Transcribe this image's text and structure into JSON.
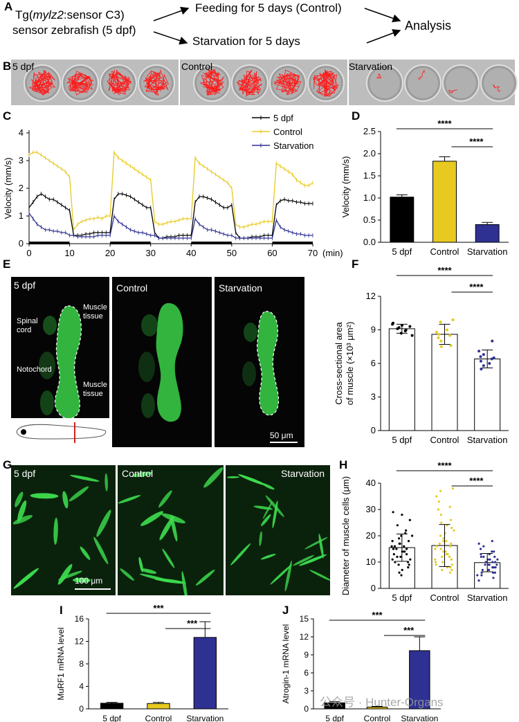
{
  "panel_letters": {
    "a": "A",
    "b": "B",
    "c": "C",
    "d": "D",
    "e": "E",
    "f": "F",
    "g": "G",
    "h": "H",
    "i": "I",
    "j": "J"
  },
  "schematic": {
    "fish_line1_pre": "Tg(",
    "fish_line1_italic": "mylz2",
    "fish_line1_post": ":sensor C3)",
    "fish_line2": "sensor zebrafish (5 dpf)",
    "feeding": "Feeding for 5 days (Control)",
    "starvation": "Starvation for 5 days",
    "analysis": "Analysis"
  },
  "tracks": {
    "labels": [
      "5 dpf",
      "Control",
      "Starvation"
    ]
  },
  "muscle_images": {
    "labels": [
      "5 dpf",
      "Control",
      "Starvation"
    ],
    "annotations": [
      "Spinal",
      "cord",
      "Notochord",
      "Muscle",
      "tissue",
      "Muscle",
      "tissue"
    ],
    "scale_bar": "50 μm"
  },
  "cell_images": {
    "labels": [
      "5 dpf",
      "Control",
      "Starvation"
    ],
    "scale_bar": "100 μm"
  },
  "watermark": "公众号 · Hunter-Organs",
  "colors": {
    "dpf": "#000000",
    "control": "#e8c91f",
    "starvation": "#2e3192",
    "green": "#3ddc4e"
  },
  "chart_data": [
    {
      "id": "C",
      "type": "line",
      "ylabel": "Velocity (mm/s)",
      "xlabel": "(min)",
      "xlim": [
        0,
        70
      ],
      "ylim": [
        0,
        4
      ],
      "xticks": [
        "0",
        "10",
        "20",
        "30",
        "40",
        "50",
        "60",
        "70"
      ],
      "yticks": [
        "0",
        "1",
        "2",
        "3",
        "4"
      ],
      "dark_periods": [
        [
          0,
          10
        ],
        [
          20,
          30
        ],
        [
          40,
          50
        ],
        [
          60,
          70
        ]
      ],
      "legend": [
        "5 dpf",
        "Control",
        "Starvation"
      ],
      "series": [
        {
          "name": "5 dpf",
          "color": "#000000",
          "values": [
            1.3,
            1.5,
            1.7,
            1.8,
            1.7,
            1.6,
            1.6,
            1.5,
            1.4,
            1.3,
            1.2,
            0.3,
            0.3,
            0.3,
            0.35,
            0.35,
            0.4,
            0.4,
            0.4,
            0.4,
            0.4,
            1.6,
            1.8,
            1.8,
            1.75,
            1.7,
            1.6,
            1.5,
            1.4,
            1.3,
            1.3,
            0.4,
            0.2,
            0.2,
            0.25,
            0.25,
            0.25,
            0.3,
            0.3,
            0.3,
            0.3,
            1.5,
            1.7,
            1.7,
            1.65,
            1.6,
            1.5,
            1.4,
            1.3,
            1.3,
            1.4,
            0.4,
            0.2,
            0.2,
            0.2,
            0.25,
            0.25,
            0.25,
            0.3,
            0.3,
            0.3,
            1.4,
            1.55,
            1.6,
            1.55,
            1.55,
            1.5,
            1.5,
            1.45,
            1.45,
            1.45
          ]
        },
        {
          "name": "Control",
          "color": "#e8c91f",
          "values": [
            3.2,
            3.3,
            3.3,
            3.2,
            3.1,
            3.0,
            2.9,
            2.8,
            2.7,
            2.6,
            2.4,
            0.5,
            0.7,
            0.8,
            0.85,
            0.9,
            0.9,
            0.95,
            0.9,
            1.0,
            1.0,
            3.3,
            3.1,
            3.0,
            2.9,
            2.8,
            2.7,
            2.6,
            2.5,
            2.4,
            2.3,
            0.8,
            0.7,
            0.7,
            0.75,
            0.8,
            0.8,
            0.85,
            0.9,
            0.9,
            0.9,
            3.1,
            2.9,
            2.8,
            2.7,
            2.6,
            2.5,
            2.4,
            2.3,
            2.2,
            2.0,
            0.7,
            0.6,
            0.6,
            0.65,
            0.7,
            0.7,
            0.75,
            0.8,
            0.8,
            0.8,
            2.9,
            2.8,
            2.7,
            2.6,
            2.5,
            2.3,
            2.2,
            2.1,
            2.1,
            2.2
          ]
        },
        {
          "name": "Starvation",
          "color": "#2e3192",
          "values": [
            1.1,
            0.9,
            0.7,
            0.6,
            0.5,
            0.5,
            0.45,
            0.45,
            0.4,
            0.4,
            0.3,
            0.3,
            0.25,
            0.25,
            0.25,
            0.25,
            0.25,
            0.3,
            0.3,
            0.3,
            0.3,
            1.0,
            0.8,
            0.7,
            0.6,
            0.5,
            0.45,
            0.4,
            0.4,
            0.35,
            0.3,
            0.3,
            0.2,
            0.2,
            0.2,
            0.2,
            0.2,
            0.2,
            0.2,
            0.2,
            0.2,
            0.9,
            0.7,
            0.6,
            0.5,
            0.5,
            0.45,
            0.4,
            0.35,
            0.3,
            0.3,
            0.2,
            0.2,
            0.2,
            0.2,
            0.2,
            0.2,
            0.2,
            0.2,
            0.2,
            0.2,
            0.85,
            0.6,
            0.5,
            0.45,
            0.4,
            0.35,
            0.35,
            0.3,
            0.3,
            0.3
          ]
        }
      ]
    },
    {
      "id": "D",
      "type": "bar",
      "ylabel": "Velocity (mm/s)",
      "ylim": [
        0,
        2.5
      ],
      "yticks": [
        "0.0",
        "0.5",
        "1.0",
        "1.5",
        "2.0",
        "2.5"
      ],
      "categories": [
        "5 dpf",
        "Control",
        "Starvation"
      ],
      "values": [
        1.02,
        1.83,
        0.4
      ],
      "errors": [
        0.05,
        0.1,
        0.05
      ],
      "colors": [
        "#000000",
        "#e8c91f",
        "#2e3192"
      ],
      "significance": [
        {
          "from": 0,
          "to": 2,
          "label": "****"
        },
        {
          "from": 1,
          "to": 2,
          "label": "****"
        }
      ]
    },
    {
      "id": "F",
      "type": "bar",
      "ylabel": "Cross-sectional area of muscle (×10³ μm²)",
      "ylabel_line1": "Cross-sectional area",
      "ylabel_line2": "of muscle (×10³ μm²)",
      "ylim": [
        0,
        12
      ],
      "yticks": [
        "0",
        "3",
        "6",
        "9",
        "12"
      ],
      "categories": [
        "5 dpf",
        "Control",
        "Starvation"
      ],
      "values": [
        9.1,
        8.6,
        6.4
      ],
      "errors": [
        0.4,
        0.9,
        0.8
      ],
      "point_colors": [
        "#000000",
        "#e8c91f",
        "#2e3192"
      ],
      "points": [
        [
          9.6,
          9.4,
          9.3,
          9.1,
          9.0,
          8.9,
          8.7,
          8.5,
          9.2,
          9.5
        ],
        [
          9.9,
          9.7,
          8.8,
          8.6,
          8.5,
          8.3,
          8.0,
          7.6,
          7.5,
          9.0
        ],
        [
          8.0,
          7.1,
          6.8,
          6.6,
          6.5,
          6.4,
          6.2,
          6.0,
          5.8,
          5.5
        ]
      ],
      "significance": [
        {
          "from": 0,
          "to": 2,
          "label": "****"
        },
        {
          "from": 1,
          "to": 2,
          "label": "****"
        }
      ]
    },
    {
      "id": "H",
      "type": "bar",
      "ylabel": "Diameter of muscle cells (μm)",
      "ylim": [
        0,
        40
      ],
      "yticks": [
        "0",
        "10",
        "20",
        "30",
        "40"
      ],
      "categories": [
        "5 dpf",
        "Control",
        "Starvation"
      ],
      "values": [
        15.5,
        16.3,
        9.8
      ],
      "errors": [
        5.2,
        8.0,
        3.5
      ],
      "point_colors": [
        "#000000",
        "#e8c91f",
        "#2e3192"
      ],
      "points": [
        [
          29,
          28,
          26,
          24,
          22,
          21,
          20,
          20,
          19,
          18,
          18,
          17,
          17,
          16,
          16,
          16,
          15,
          15,
          15,
          14,
          14,
          14,
          13,
          13,
          12,
          12,
          11,
          11,
          10,
          10,
          9,
          9,
          8,
          7,
          6,
          5
        ],
        [
          38,
          37,
          35,
          33,
          31,
          30,
          28,
          26,
          25,
          24,
          23,
          22,
          21,
          20,
          19,
          18,
          18,
          17,
          17,
          16,
          16,
          15,
          15,
          14,
          14,
          13,
          13,
          12,
          12,
          11,
          11,
          10,
          10,
          9,
          9,
          8,
          8,
          7,
          7,
          6
        ],
        [
          18,
          17,
          16,
          15,
          14,
          14,
          13,
          13,
          12,
          12,
          12,
          11,
          11,
          11,
          10,
          10,
          10,
          10,
          9,
          9,
          9,
          9,
          8,
          8,
          8,
          8,
          7,
          7,
          7,
          6,
          6,
          6,
          5,
          5,
          4,
          3
        ]
      ],
      "significance": [
        {
          "from": 0,
          "to": 2,
          "label": "****"
        },
        {
          "from": 1,
          "to": 2,
          "label": "****"
        }
      ]
    },
    {
      "id": "I",
      "type": "bar",
      "ylabel": "MuRF1 mRNA level",
      "ylim": [
        0,
        16
      ],
      "yticks": [
        "0",
        "4",
        "8",
        "12",
        "16"
      ],
      "categories": [
        "5 dpf",
        "Control",
        "Starvation"
      ],
      "values": [
        1.0,
        0.95,
        12.7
      ],
      "errors": [
        0.15,
        0.2,
        2.8
      ],
      "colors": [
        "#000000",
        "#e8c91f",
        "#2e3192"
      ],
      "significance": [
        {
          "from": 0,
          "to": 2,
          "label": "***"
        },
        {
          "from": 1,
          "to": 2,
          "label": "***"
        }
      ]
    },
    {
      "id": "J",
      "type": "bar",
      "ylabel": "Atrogin-1 mRNA level",
      "ylim": [
        0,
        15
      ],
      "yticks": [
        "0",
        "3",
        "6",
        "9",
        "12",
        "15"
      ],
      "categories": [
        "5 dpf",
        "Control",
        "Starvation"
      ],
      "values": [
        1.0,
        0.3,
        9.7
      ],
      "errors": [
        0.2,
        0.1,
        2.3
      ],
      "colors": [
        "#000000",
        "#e8c91f",
        "#2e3192"
      ],
      "significance": [
        {
          "from": 0,
          "to": 2,
          "label": "***"
        },
        {
          "from": 1,
          "to": 2,
          "label": "***"
        }
      ]
    }
  ]
}
